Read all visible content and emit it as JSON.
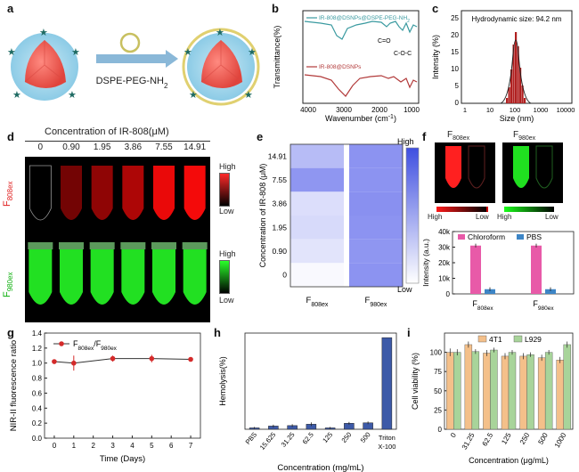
{
  "panel_labels": {
    "a": "a",
    "b": "b",
    "c": "c",
    "d": "d",
    "e": "e",
    "f": "f",
    "g": "g",
    "h": "h",
    "i": "i"
  },
  "panel_a": {
    "reagent": "DSPE-PEG-NH",
    "reagent_sub": "2"
  },
  "panel_b": {
    "ylabel": "Transmittance(%)",
    "xlabel": "Wavenumber (cm",
    "xlabel_sup": "-1",
    "xlabel_end": ")",
    "xticks": [
      "4000",
      "3000",
      "2000",
      "1000"
    ],
    "top_legend": "IR-808@DSNPs@DSPE-PEG-NH",
    "top_legend_sub": "2",
    "bottom_legend": "IR-808@DSNPs",
    "ann1": "C=O",
    "ann2": "C-O-C",
    "top_color": "#3a9aa0",
    "bottom_color": "#b23a3a"
  },
  "panel_c": {
    "ylabel": "Intensity (%)",
    "xlabel": "Size (nm)",
    "title": "Hydrodynamic size: 94.2 nm",
    "yticks": [
      "0",
      "5",
      "10",
      "15",
      "20",
      "25"
    ],
    "xticks": [
      "1",
      "10",
      "100",
      "1000",
      "10000"
    ]
  },
  "panel_d": {
    "title": "Concentration  of IR-808(μM)",
    "concentrations": [
      "0",
      "0.90",
      "1.95",
      "3.86",
      "7.55",
      "14.91"
    ],
    "red_intensity": [
      0.0,
      0.35,
      0.48,
      0.62,
      0.9,
      0.95
    ],
    "high": "High",
    "low": "Low",
    "row1_label": "F",
    "row1_sub": "808ex",
    "row2_label": "F",
    "row2_sub": "980ex"
  },
  "panel_e": {
    "ylabel": "Concentration of IR-808 (μM)",
    "yticks": [
      "14.91",
      "7.55",
      "3.86",
      "1.95",
      "0.90",
      "0"
    ],
    "col1": "F",
    "col1_sub": "808ex",
    "col2": "F",
    "col2_sub": "980ex",
    "high": "High",
    "low": "Low",
    "col1_levels": [
      0.45,
      0.7,
      0.22,
      0.25,
      0.18,
      0.04
    ],
    "col2_levels": [
      0.72,
      0.72,
      0.74,
      0.72,
      0.7,
      0.72
    ]
  },
  "panel_f": {
    "top_left": "F",
    "top_left_sub": "808ex",
    "top_right": "F",
    "top_right_sub": "980ex",
    "high": "High",
    "low": "Low",
    "chart_data": {
      "type": "bar",
      "categories": [
        "F808ex",
        "F980ex"
      ],
      "series": [
        {
          "name": "Chloroform",
          "values": [
            31000,
            31000
          ],
          "color": "#e85aa8"
        },
        {
          "name": "PBS",
          "values": [
            3000,
            3000
          ],
          "color": "#3d85c6"
        }
      ],
      "ylabel": "Intensity (a.u.)",
      "yticks": [
        "0",
        "10k",
        "20k",
        "30k",
        "40k"
      ],
      "ylim": [
        0,
        40000
      ]
    }
  },
  "panel_g": {
    "chart_data": {
      "type": "line",
      "x": [
        0,
        1,
        3,
        5,
        7
      ],
      "series": [
        {
          "name": "F808ex/F980ex",
          "values": [
            1.02,
            1.0,
            1.06,
            1.06,
            1.05
          ]
        }
      ],
      "errors": [
        0.02,
        0.1,
        0.04,
        0.05,
        0.02
      ],
      "xlabel": "Time (Days)",
      "ylabel": "NIR-II fluorescence ratio",
      "ylim": [
        0.0,
        1.4
      ],
      "xlim": [
        -0.5,
        7.5
      ]
    },
    "legend_main": "F",
    "legend_sub1": "808ex",
    "legend_slash": "/F",
    "legend_sub2": "980ex",
    "yticks": [
      "0.0",
      "0.2",
      "0.4",
      "0.6",
      "0.8",
      "1.0",
      "1.2",
      "1.4"
    ],
    "xticks": [
      "0",
      "1",
      "2",
      "3",
      "4",
      "5",
      "6",
      "7"
    ],
    "color": "#d42a2a"
  },
  "panel_h": {
    "chart_data": {
      "type": "bar",
      "categories": [
        "PBS",
        "15.625",
        "31.25",
        "62.5",
        "125",
        "250",
        "500",
        "Triton X-100"
      ],
      "values": [
        1.5,
        3.5,
        4,
        5.5,
        1.5,
        6.5,
        7,
        100
      ],
      "errors": [
        1,
        1.5,
        1.5,
        2,
        1,
        1.5,
        1.5,
        0
      ],
      "xlabel": "Concentration (mg/mL)",
      "ylabel": "Hemolysis(%)",
      "ylim": [
        0,
        105
      ]
    },
    "cat_labels": [
      "PBS",
      "15.625",
      "31.25",
      "62.5",
      "125",
      "250",
      "500",
      "Triton",
      "X-100"
    ]
  },
  "panel_i": {
    "chart_data": {
      "type": "bar",
      "categories": [
        "0",
        "31.25",
        "62.5",
        "125",
        "250",
        "500",
        "1000"
      ],
      "series": [
        {
          "name": "4T1",
          "values": [
            100,
            110,
            99,
            95,
            95,
            93,
            90
          ],
          "color": "#f4c08a"
        },
        {
          "name": "L929",
          "values": [
            100,
            101,
            103,
            100,
            97,
            100,
            110
          ],
          "color": "#a8d49a"
        }
      ],
      "errors": [
        [
          5,
          4,
          4,
          4,
          4,
          4,
          4
        ],
        [
          4,
          3,
          3,
          3,
          3,
          3,
          4
        ]
      ],
      "xlabel": "Concentration (μg/mL)",
      "ylabel": "Cell viability (%)",
      "yticks": [
        "0",
        "25",
        "50",
        "75",
        "100"
      ],
      "ylim": [
        0,
        125
      ]
    }
  }
}
